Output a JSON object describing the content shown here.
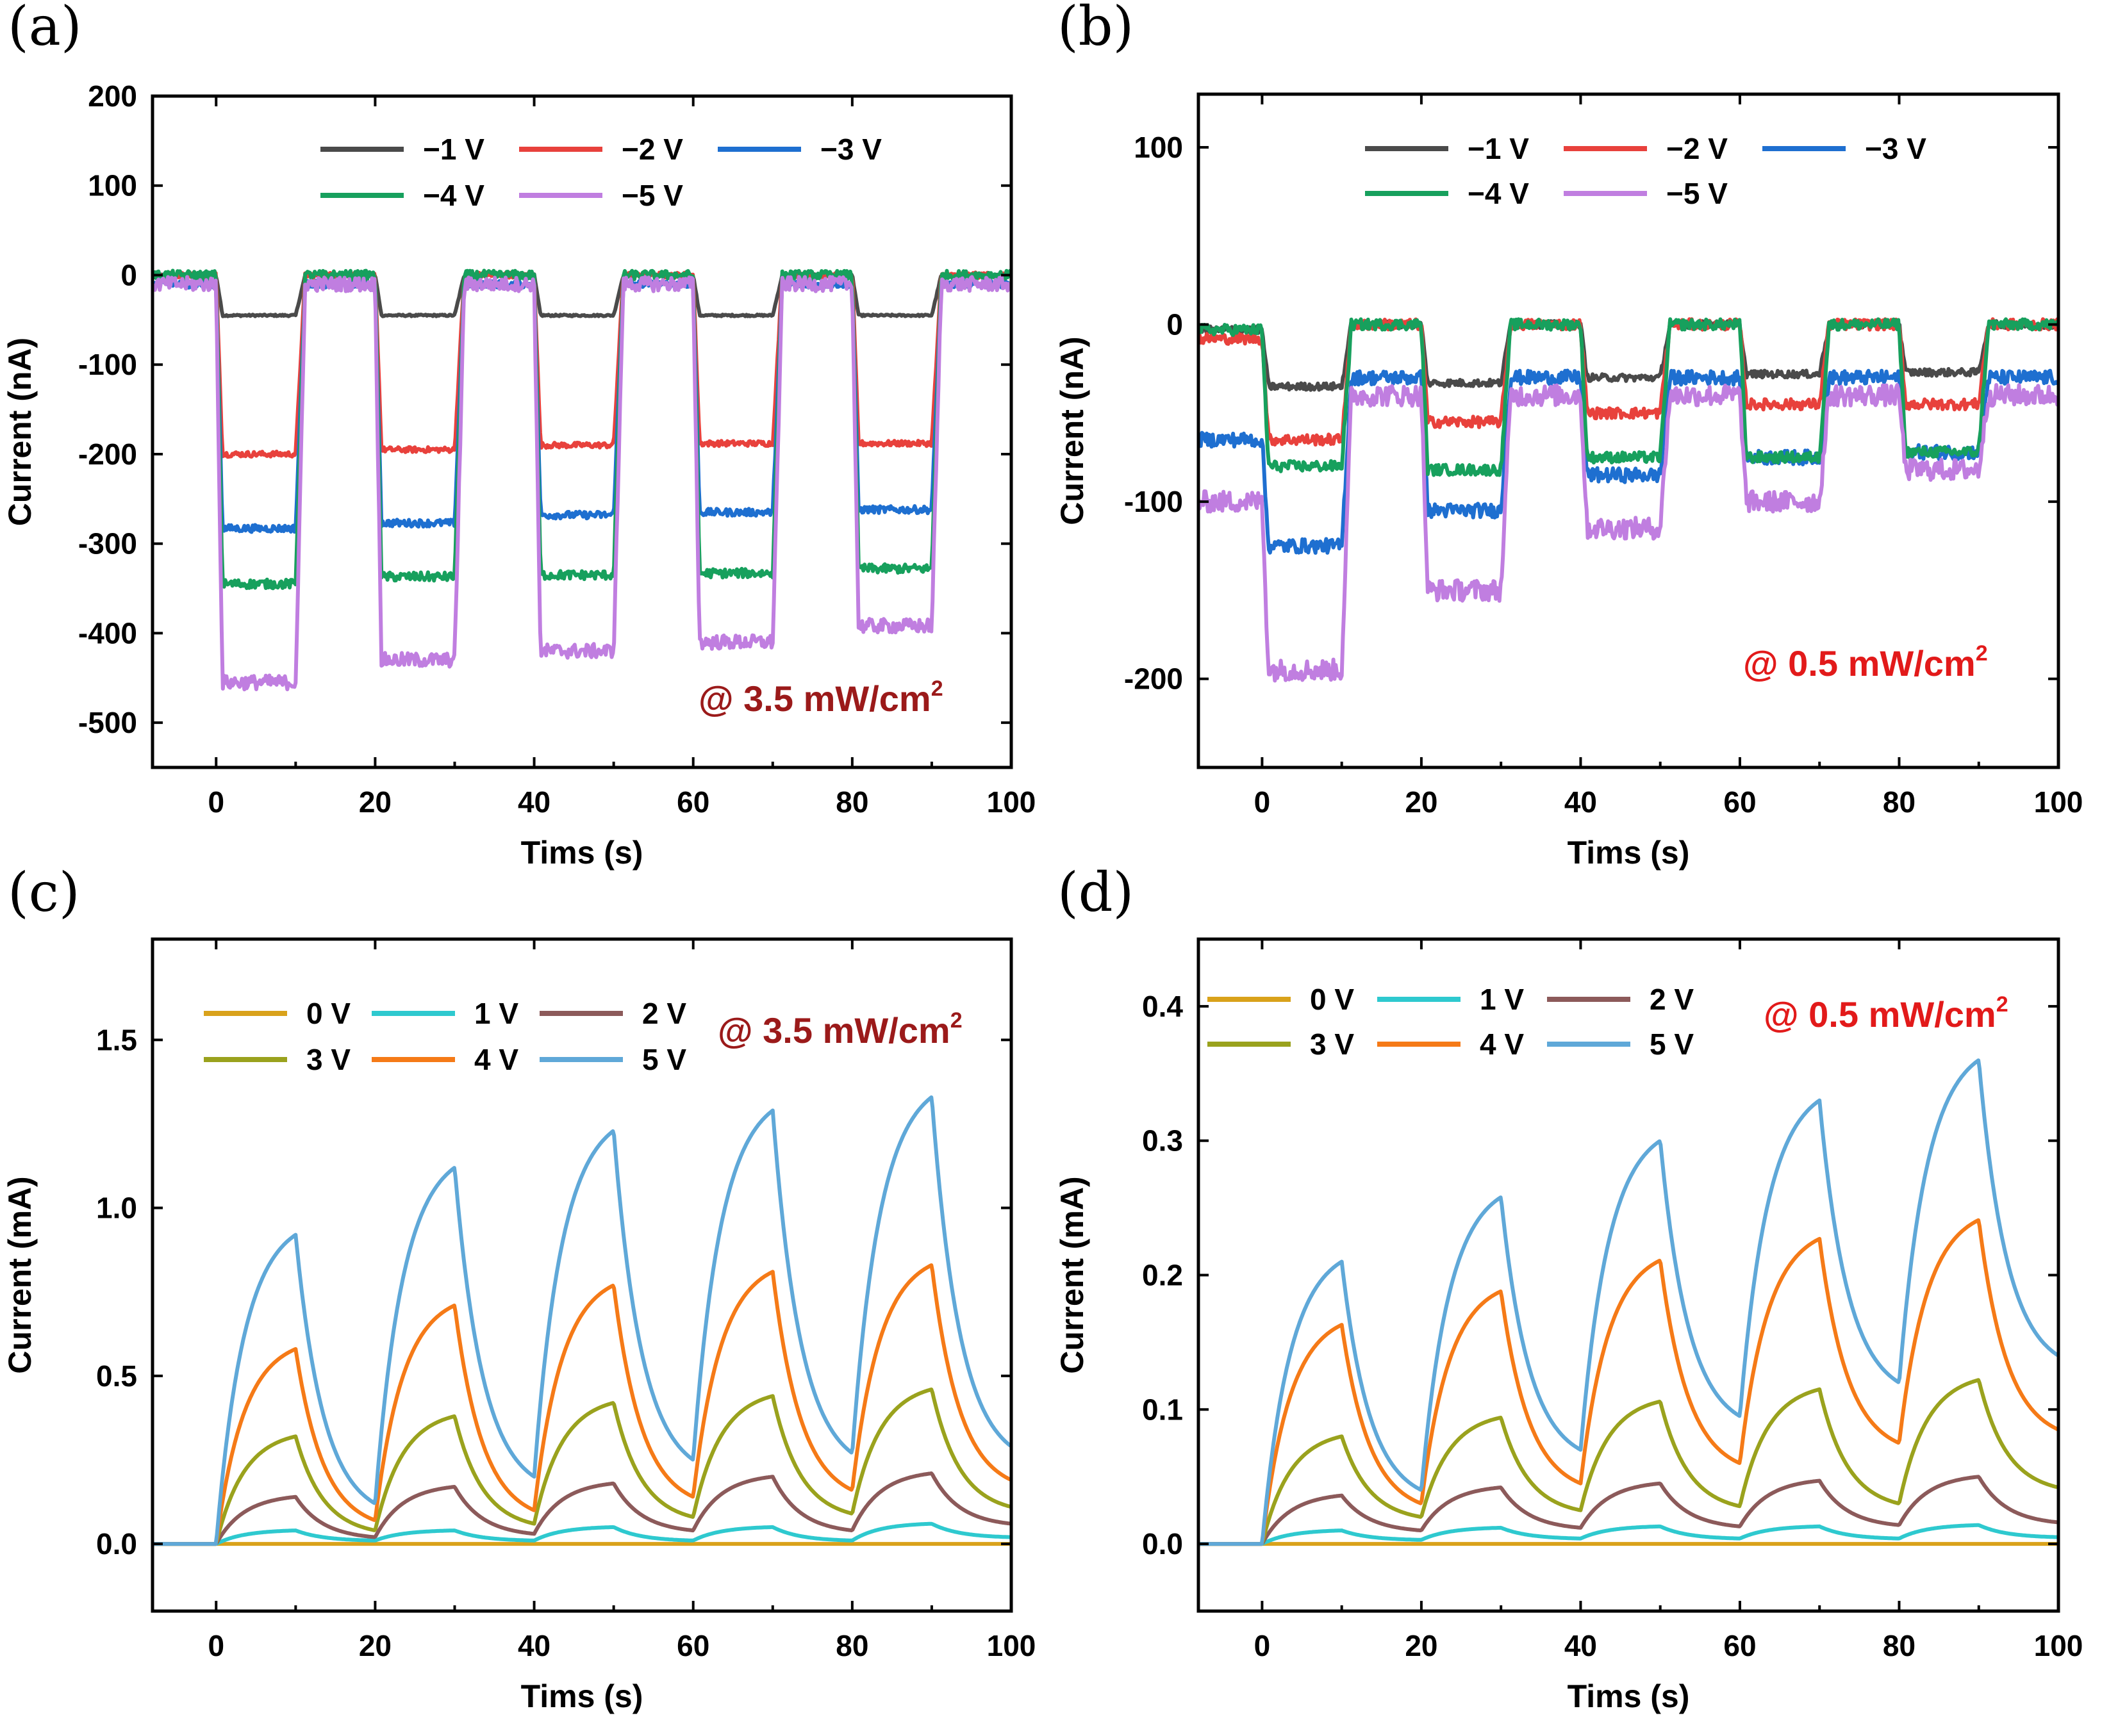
{
  "chart_data": [
    {
      "panel_label": "(a)",
      "type": "line",
      "xlabel": "Tims (s)",
      "ylabel": "Current (nA)",
      "xlim": [
        -8,
        100
      ],
      "ylim": [
        -550,
        200
      ],
      "xticks": [
        0,
        20,
        40,
        60,
        80,
        100
      ],
      "yticks": [
        200,
        100,
        0,
        -100,
        -200,
        -300,
        -400,
        -500
      ],
      "annotation": {
        "text": "@ 3.5 mW/cm",
        "sup": "2",
        "color": "#9b1a1a"
      },
      "mode": "square",
      "period": 20,
      "on_duration": 10,
      "series": [
        {
          "name": "−1 V",
          "color": "#4a4a4a",
          "on": [
            -45,
            -45,
            -45,
            -45,
            -45
          ],
          "off": 0,
          "noise": 1
        },
        {
          "name": "−2 V",
          "color": "#e8413c",
          "on": [
            -200,
            -195,
            -190,
            -188,
            -188
          ],
          "off": 0,
          "noise": 3
        },
        {
          "name": "−3 V",
          "color": "#1e6fd0",
          "on": [
            -283,
            -277,
            -268,
            -265,
            -262
          ],
          "off": -10,
          "noise": 4
        },
        {
          "name": "−4 V",
          "color": "#17a05d",
          "on": [
            -345,
            -337,
            -335,
            -333,
            -328
          ],
          "off": 0,
          "noise": 5
        },
        {
          "name": "−5 V",
          "color": "#c07ee0",
          "on": [
            -455,
            -430,
            -420,
            -410,
            -392
          ],
          "off": -10,
          "noise": 8
        }
      ]
    },
    {
      "panel_label": "(b)",
      "type": "line",
      "xlabel": "Tims (s)",
      "ylabel": "Current (nA)",
      "xlim": [
        -8,
        100
      ],
      "ylim": [
        -250,
        130
      ],
      "xticks": [
        0,
        20,
        40,
        60,
        80,
        100
      ],
      "yticks": [
        100,
        0,
        -100,
        -200
      ],
      "annotation": {
        "text": "@ 0.5 mW/cm",
        "sup": "2",
        "color": "#e21a1a"
      },
      "mode": "square",
      "period": 20,
      "on_duration": 10,
      "series": [
        {
          "name": "−1 V",
          "color": "#4a4a4a",
          "on": [
            -35,
            -33,
            -30,
            -28,
            -27
          ],
          "off": 0,
          "pre": -3,
          "noise": 2
        },
        {
          "name": "−2 V",
          "color": "#e8413c",
          "on": [
            -65,
            -55,
            -50,
            -45,
            -45
          ],
          "off": 0,
          "pre": -8,
          "noise": 3
        },
        {
          "name": "−3 V",
          "color": "#1e6fd0",
          "on": [
            -125,
            -105,
            -85,
            -75,
            -72
          ],
          "off": -30,
          "pre": -65,
          "noise": 4
        },
        {
          "name": "−4 V",
          "color": "#17a05d",
          "on": [
            -80,
            -82,
            -75,
            -75,
            -72
          ],
          "off": 0,
          "pre": -3,
          "noise": 3
        },
        {
          "name": "−5 V",
          "color": "#c07ee0",
          "on": [
            -195,
            -150,
            -115,
            -100,
            -82
          ],
          "off": -40,
          "pre": -100,
          "noise": 6
        }
      ]
    },
    {
      "panel_label": "(c)",
      "type": "line",
      "xlabel": "Tims (s)",
      "ylabel": "Current (mA)",
      "xlim": [
        -8,
        100
      ],
      "ylim": [
        -0.2,
        1.8
      ],
      "xticks": [
        0,
        20,
        40,
        60,
        80,
        100
      ],
      "yticks": [
        1.5,
        1.0,
        0.5,
        0.0
      ],
      "annotation": {
        "text": "@ 3.5 mW/cm",
        "sup": "2",
        "color": "#9b1a1a"
      },
      "mode": "charge",
      "period": 20,
      "on_duration": 10,
      "series": [
        {
          "name": "0 V",
          "color": "#d9a21b",
          "peaks": [
            0,
            0,
            0,
            0,
            0
          ],
          "mins": [
            0,
            0,
            0,
            0,
            0
          ],
          "end": 0
        },
        {
          "name": "1 V",
          "color": "#2ec9cf",
          "peaks": [
            0.04,
            0.04,
            0.05,
            0.05,
            0.06
          ],
          "mins": [
            0,
            0.01,
            0.01,
            0.01,
            0.01
          ],
          "end": 0.02
        },
        {
          "name": "2 V",
          "color": "#8c5a5a",
          "peaks": [
            0.14,
            0.17,
            0.18,
            0.2,
            0.21
          ],
          "mins": [
            0,
            0.02,
            0.03,
            0.04,
            0.04
          ],
          "end": 0.06
        },
        {
          "name": "3 V",
          "color": "#9aa21d",
          "peaks": [
            0.32,
            0.38,
            0.42,
            0.44,
            0.46
          ],
          "mins": [
            0,
            0.04,
            0.06,
            0.08,
            0.09
          ],
          "end": 0.11
        },
        {
          "name": "4 V",
          "color": "#f57a17",
          "peaks": [
            0.58,
            0.71,
            0.77,
            0.81,
            0.83
          ],
          "mins": [
            0,
            0.07,
            0.1,
            0.14,
            0.16
          ],
          "end": 0.19
        },
        {
          "name": "5 V",
          "color": "#5fa8d8",
          "peaks": [
            0.92,
            1.12,
            1.23,
            1.29,
            1.33
          ],
          "mins": [
            0,
            0.12,
            0.2,
            0.25,
            0.27
          ],
          "end": 0.29
        }
      ]
    },
    {
      "panel_label": "(d)",
      "type": "line",
      "xlabel": "Tims (s)",
      "ylabel": "Current (mA)",
      "xlim": [
        -8,
        100
      ],
      "ylim": [
        -0.05,
        0.45
      ],
      "xticks": [
        0,
        20,
        40,
        60,
        80,
        100
      ],
      "yticks": [
        0.4,
        0.3,
        0.2,
        0.1,
        0.0
      ],
      "annotation": {
        "text": "@ 0.5 mW/cm",
        "sup": "2",
        "color": "#e21a1a"
      },
      "mode": "charge",
      "period": 20,
      "on_duration": 10,
      "series": [
        {
          "name": "0 V",
          "color": "#d9a21b",
          "peaks": [
            0,
            0,
            0,
            0,
            0
          ],
          "mins": [
            0,
            0,
            0,
            0,
            0
          ],
          "end": 0
        },
        {
          "name": "1 V",
          "color": "#2ec9cf",
          "peaks": [
            0.01,
            0.012,
            0.013,
            0.013,
            0.014
          ],
          "mins": [
            0,
            0.003,
            0.004,
            0.004,
            0.004
          ],
          "end": 0.005
        },
        {
          "name": "2 V",
          "color": "#8c5a5a",
          "peaks": [
            0.036,
            0.042,
            0.045,
            0.047,
            0.05
          ],
          "mins": [
            0,
            0.01,
            0.012,
            0.013,
            0.014
          ],
          "end": 0.016
        },
        {
          "name": "3 V",
          "color": "#9aa21d",
          "peaks": [
            0.08,
            0.094,
            0.106,
            0.115,
            0.122
          ],
          "mins": [
            0,
            0.02,
            0.025,
            0.028,
            0.03
          ],
          "end": 0.042
        },
        {
          "name": "4 V",
          "color": "#f57a17",
          "peaks": [
            0.163,
            0.188,
            0.211,
            0.227,
            0.241
          ],
          "mins": [
            0,
            0.03,
            0.045,
            0.06,
            0.075
          ],
          "end": 0.085
        },
        {
          "name": "5 V",
          "color": "#5fa8d8",
          "peaks": [
            0.21,
            0.258,
            0.3,
            0.33,
            0.36
          ],
          "mins": [
            0,
            0.04,
            0.07,
            0.095,
            0.12
          ],
          "end": 0.14
        }
      ]
    }
  ]
}
